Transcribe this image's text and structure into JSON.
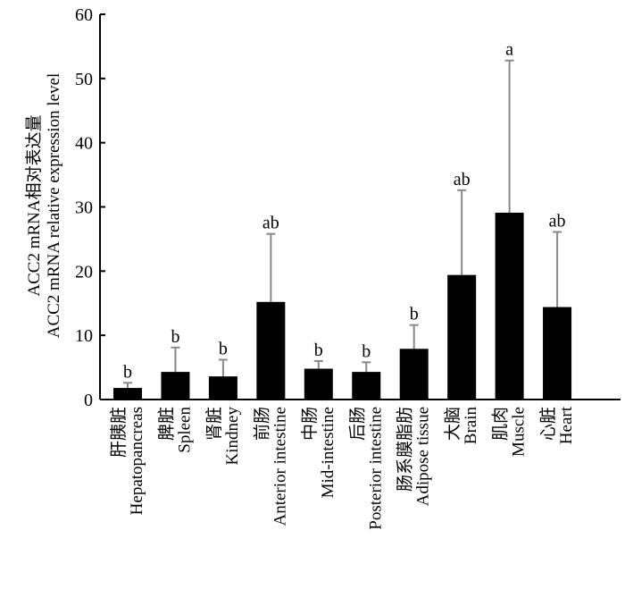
{
  "chart_data": {
    "type": "bar",
    "ylabel_line1": "ACC2 mRNA相对表达量",
    "ylabel_line2": "ACC2 mRNA relative expression level",
    "ylim": [
      0,
      60
    ],
    "yticks": [
      "0",
      "10",
      "20",
      "30",
      "40",
      "50",
      "60"
    ],
    "grid": false,
    "categories": [
      {
        "zh": "肝胰脏",
        "en": "Hepatopancreas"
      },
      {
        "zh": "脾脏",
        "en": "Spleen"
      },
      {
        "zh": "肾脏",
        "en": "Kindney"
      },
      {
        "zh": "前肠",
        "en": "Anterior intestine"
      },
      {
        "zh": "中肠",
        "en": "Mid-intestine"
      },
      {
        "zh": "后肠",
        "en": "Posterior intestine"
      },
      {
        "zh": "肠系膜脂肪",
        "en": "Adipose tissue"
      },
      {
        "zh": "大脑",
        "en": "Brain"
      },
      {
        "zh": "肌肉",
        "en": "Muscle"
      },
      {
        "zh": "心脏",
        "en": "Heart"
      }
    ],
    "values": [
      1.8,
      4.3,
      3.6,
      15.2,
      4.8,
      4.3,
      7.9,
      19.4,
      29.1,
      14.4
    ],
    "error_upper": [
      2.6,
      8.1,
      6.2,
      25.8,
      6.0,
      5.8,
      11.6,
      32.6,
      52.8,
      26.1
    ],
    "significance": [
      "b",
      "b",
      "b",
      "ab",
      "b",
      "b",
      "b",
      "ab",
      "a",
      "ab"
    ],
    "colors": {
      "bar": "#000000",
      "error": "#888888",
      "axis": "#000000"
    }
  }
}
